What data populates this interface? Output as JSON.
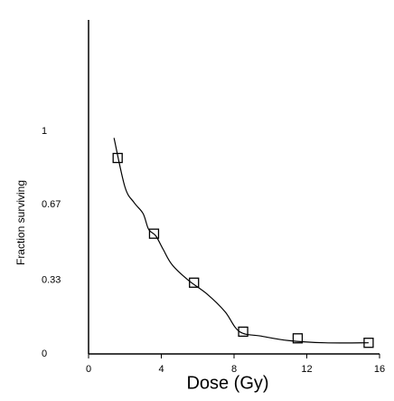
{
  "chart_data": {
    "type": "scatter",
    "xlabel": "Dose (Gy)",
    "ylabel": "Fraction surviving",
    "xlim": [
      0,
      16
    ],
    "xticks": [
      0,
      4,
      8,
      12,
      16
    ],
    "ylim": [
      0,
      1.5
    ],
    "yticks": [
      0,
      {
        "value": 0.33,
        "label": "0.33"
      },
      {
        "value": 0.67,
        "label": "0.67"
      },
      1
    ],
    "series": [
      {
        "color": "#000000",
        "marker": "square",
        "x": [
          1.6,
          3.6,
          5.8,
          8.5,
          11.5,
          15.4
        ],
        "values": [
          0.88,
          0.54,
          0.32,
          0.1,
          0.07,
          0.05
        ]
      },
      {
        "color": "#000000",
        "marker": "line",
        "x": [
          1.4,
          2.0,
          2.5,
          3.0,
          3.3,
          3.7,
          4.1,
          4.6,
          5.5,
          6.5,
          7.5,
          8.3,
          9.5,
          11,
          13,
          15.4
        ],
        "values": [
          0.97,
          0.75,
          0.68,
          0.63,
          0.56,
          0.53,
          0.47,
          0.4,
          0.33,
          0.27,
          0.19,
          0.1,
          0.08,
          0.06,
          0.05,
          0.05
        ]
      }
    ]
  }
}
